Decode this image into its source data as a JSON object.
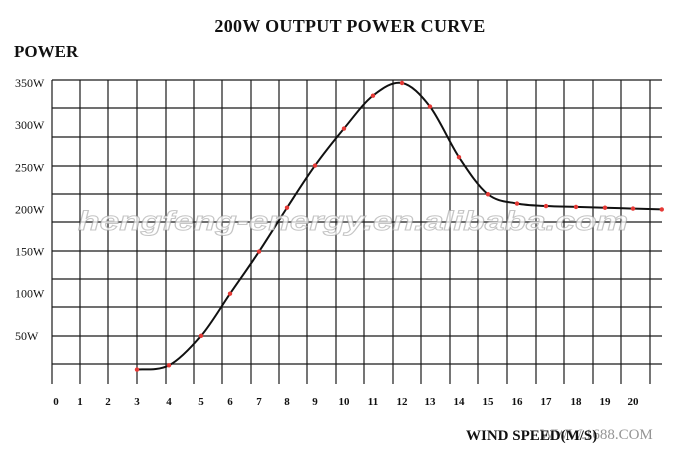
{
  "chart_data": {
    "type": "line",
    "title": "200W OUTPUT POWER CURVE",
    "ylabel": "POWER",
    "xlabel": "WIND SPEED(M/S)",
    "x_ticks": [
      0,
      1,
      2,
      3,
      4,
      5,
      6,
      7,
      8,
      9,
      10,
      11,
      12,
      13,
      14,
      15,
      16,
      17,
      18,
      19,
      20
    ],
    "y_ticks": [
      "50W",
      "100W",
      "150W",
      "200W",
      "250W",
      "300W",
      "350W"
    ],
    "ylim": [
      0,
      350
    ],
    "grid": true,
    "series": [
      {
        "points": [
          [
            3,
            10
          ],
          [
            4,
            15
          ],
          [
            5,
            50
          ],
          [
            6,
            100
          ],
          [
            7,
            150
          ],
          [
            8,
            202
          ],
          [
            9,
            252
          ],
          [
            10,
            296
          ],
          [
            11,
            335
          ],
          [
            12,
            350
          ],
          [
            13,
            322
          ],
          [
            14,
            262
          ],
          [
            15,
            218
          ],
          [
            16,
            207
          ],
          [
            17,
            204
          ],
          [
            18,
            203
          ],
          [
            19,
            202
          ],
          [
            20,
            201
          ],
          [
            21,
            200
          ]
        ],
        "line_color": "#111111",
        "marker_color": "#e53935"
      }
    ],
    "watermark": "hengfeng-energy.en.alibaba.com",
    "watermark_bottom": "WWW.1688.COM"
  }
}
